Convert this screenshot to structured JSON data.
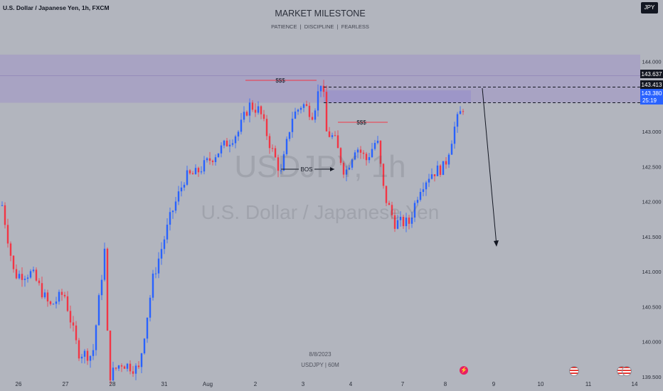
{
  "header": {
    "symbol_title": "U.S. Dollar / Japanese Yen, 1h, FXCM",
    "brand_title": "MARKET MILESTONE",
    "brand_subtitle": "PATIENCE  |  DISCIPLINE  |  FEARLESS",
    "currency_button": "JPY"
  },
  "watermark": {
    "ticker": "USDJPY, 1h",
    "name": "U.S. Dollar / Japanese Yen"
  },
  "footer": {
    "date": "8/8/2023",
    "symbol_tf": "USDJPY | 60M"
  },
  "price_labels": {
    "level_upper": "143.637",
    "level_lower": "143.413",
    "last_price": "143.380",
    "countdown": "25:19"
  },
  "annotations": {
    "liq1": "$$$",
    "liq2": "$$$",
    "bos": "BOS"
  },
  "colors": {
    "background": "#b2b5be",
    "up": "#2962ff",
    "down": "#f23645",
    "zone": "#9c8fc9",
    "last_price_bg": "#2962ff",
    "level_bg": "#131722"
  },
  "icons": [
    "lightning-event-icon",
    "us-flag-icon",
    "us-flag-icon"
  ],
  "chart_data": {
    "type": "candlestick",
    "y_range": [
      139.5,
      144.2
    ],
    "y_ticks": [
      "144.000",
      "143.500",
      "143.000",
      "142.500",
      "142.000",
      "141.500",
      "141.000",
      "140.500",
      "140.000",
      "139.500"
    ],
    "x_ticks": [
      "26",
      "27",
      "28",
      "31",
      "Aug",
      "2",
      "3",
      "4",
      "7",
      "8",
      "9",
      "10",
      "11",
      "14"
    ],
    "supply_zone": [
      143.413,
      144.1
    ],
    "levels": [
      143.637,
      143.413
    ],
    "last_price": 143.38,
    "projected_move": {
      "from": 143.413,
      "to": 141.65
    },
    "path_points": [
      {
        "x": 3,
        "y": 141.95
      },
      {
        "x": 20,
        "y": 140.95
      },
      {
        "x": 45,
        "y": 140.98
      },
      {
        "x": 70,
        "y": 140.5
      },
      {
        "x": 90,
        "y": 140.7
      },
      {
        "x": 110,
        "y": 139.85
      },
      {
        "x": 130,
        "y": 139.8
      },
      {
        "x": 147,
        "y": 141.3
      },
      {
        "x": 153,
        "y": 139.5
      },
      {
        "x": 170,
        "y": 139.7
      },
      {
        "x": 195,
        "y": 139.6
      },
      {
        "x": 215,
        "y": 140.9
      },
      {
        "x": 240,
        "y": 141.8
      },
      {
        "x": 260,
        "y": 142.35
      },
      {
        "x": 275,
        "y": 142.4
      },
      {
        "x": 295,
        "y": 142.6
      },
      {
        "x": 315,
        "y": 142.8
      },
      {
        "x": 335,
        "y": 143.0
      },
      {
        "x": 350,
        "y": 143.38
      },
      {
        "x": 365,
        "y": 143.3
      },
      {
        "x": 380,
        "y": 142.8
      },
      {
        "x": 395,
        "y": 142.4
      },
      {
        "x": 410,
        "y": 143.2
      },
      {
        "x": 425,
        "y": 143.4
      },
      {
        "x": 440,
        "y": 143.25
      },
      {
        "x": 453,
        "y": 143.8
      },
      {
        "x": 458,
        "y": 143.0
      },
      {
        "x": 470,
        "y": 142.9
      },
      {
        "x": 485,
        "y": 142.4
      },
      {
        "x": 500,
        "y": 142.8
      },
      {
        "x": 515,
        "y": 142.6
      },
      {
        "x": 530,
        "y": 142.9
      },
      {
        "x": 540,
        "y": 142.1
      },
      {
        "x": 555,
        "y": 141.7
      },
      {
        "x": 575,
        "y": 141.7
      },
      {
        "x": 590,
        "y": 142.2
      },
      {
        "x": 605,
        "y": 142.4
      },
      {
        "x": 625,
        "y": 142.5
      },
      {
        "x": 640,
        "y": 143.1
      },
      {
        "x": 652,
        "y": 143.38
      }
    ]
  }
}
